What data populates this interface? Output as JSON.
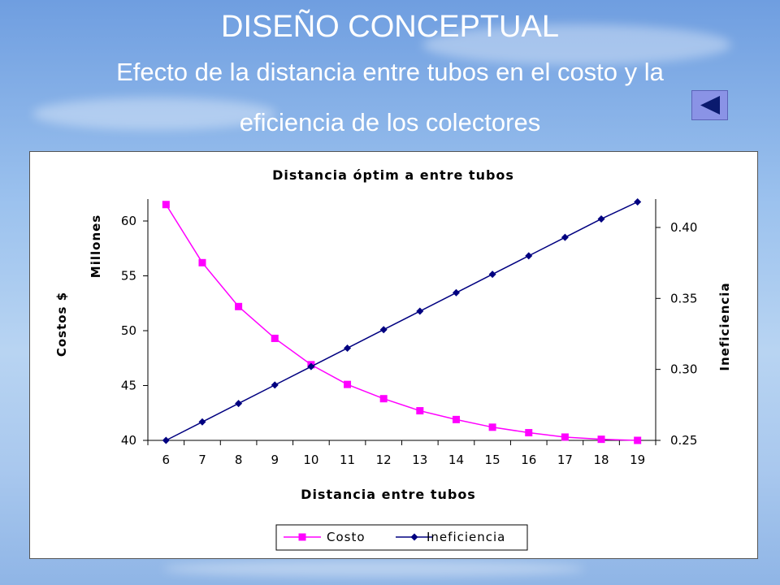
{
  "slide": {
    "title": "DISEÑO CONCEPTUAL",
    "subtitle_line1": "Efecto de la distancia entre tubos en el costo y la",
    "subtitle_line2": "eficiencia de los colectores",
    "back_icon": "triangle-left-icon"
  },
  "chart_data": {
    "type": "line",
    "title": "Distancia óptim a entre tubos",
    "xlabel": "Distancia entre tubos",
    "ylabel_left": "Costos $",
    "ylabel_left_units": "Millones",
    "ylabel_right": "Ineficiencia",
    "x": [
      6,
      7,
      8,
      9,
      10,
      11,
      12,
      13,
      14,
      15,
      16,
      17,
      18,
      19
    ],
    "ylim_left": [
      40,
      62
    ],
    "yticks_left": [
      40,
      45,
      50,
      55,
      60
    ],
    "ylim_right": [
      0.25,
      0.42
    ],
    "yticks_right": [
      0.25,
      0.3,
      0.35,
      0.4
    ],
    "ytick_labels_right": [
      "0.25",
      "0.30",
      "0.35",
      "0.40"
    ],
    "series": [
      {
        "name": "Costo",
        "axis": "left",
        "color": "#ff00ff",
        "marker": "square",
        "values": [
          61.5,
          56.2,
          52.2,
          49.3,
          46.9,
          45.1,
          43.8,
          42.7,
          41.9,
          41.2,
          40.7,
          40.3,
          40.1,
          40.0
        ]
      },
      {
        "name": "Ineficiencia",
        "axis": "right",
        "color": "#000080",
        "marker": "diamond",
        "values": [
          0.25,
          0.263,
          0.276,
          0.289,
          0.302,
          0.315,
          0.328,
          0.341,
          0.354,
          0.367,
          0.38,
          0.393,
          0.406,
          0.418
        ]
      }
    ],
    "legend_position": "bottom",
    "grid": false
  }
}
